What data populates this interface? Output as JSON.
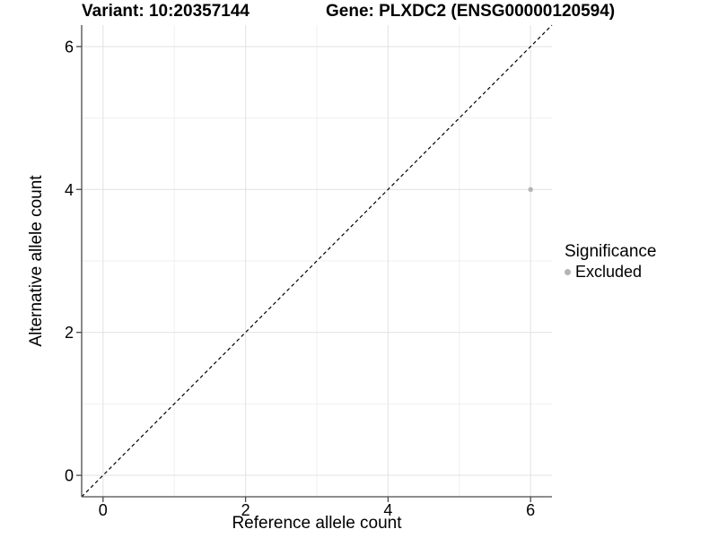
{
  "chart_data": {
    "type": "scatter",
    "title_variant": "Variant: 10:20357144",
    "title_gene": "Gene: PLXDC2 (ENSG00000120594)",
    "xlabel": "Reference allele count",
    "ylabel": "Alternative allele count",
    "xlim": [
      -0.3,
      6.3
    ],
    "ylim": [
      -0.3,
      6.3
    ],
    "x_major_ticks": [
      0,
      2,
      4,
      6
    ],
    "y_major_ticks": [
      0,
      2,
      4,
      6
    ],
    "x_minor_gridlines": [
      1,
      3,
      5
    ],
    "y_minor_gridlines": [
      1,
      3,
      5
    ],
    "grid": "major+minor",
    "legend_position": "right",
    "series": [
      {
        "name": "Excluded",
        "color": "#b4b4b4",
        "marker": "circle",
        "points": [
          {
            "x": 6,
            "y": 4
          }
        ]
      }
    ],
    "identity_line": {
      "from": [
        -0.3,
        -0.3
      ],
      "to": [
        6.3,
        6.3
      ],
      "style": "dashed",
      "color": "#000000"
    },
    "legend": {
      "title": "Significance",
      "entries": [
        {
          "label": "Excluded",
          "color": "#b4b4b4",
          "marker": "circle"
        }
      ]
    }
  },
  "colors": {
    "background": "#ffffff",
    "axis_line": "#4a4a4a",
    "grid_major": "#e4e4e4",
    "grid_minor": "#efefef",
    "tick_label": "#000000",
    "point": "#b4b4b4"
  }
}
